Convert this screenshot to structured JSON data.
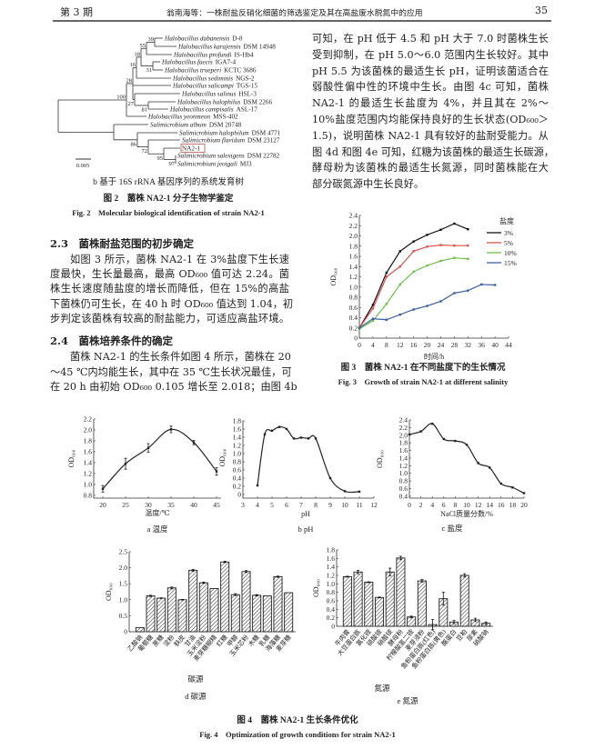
{
  "header": {
    "issue": "第 3 期",
    "running_title": "翁南海等：一株耐盐反硝化细菌的筛选鉴定及其在高盐废水脱氮中的应用",
    "page_number": "35"
  },
  "fig2": {
    "leaves": [
      {
        "taxon": "Halobacillus dabanensis",
        "strain": "D-8"
      },
      {
        "taxon": "Halobacillus karajensis",
        "strain": "DSM 14948"
      },
      {
        "taxon": "Halobacillus profundi",
        "strain": "IS-Hb4"
      },
      {
        "taxon": "Halobacillus faecis",
        "strain": "IGA7-4"
      },
      {
        "taxon": "Halobacillus trueperi",
        "strain": "KCTC 3686"
      },
      {
        "taxon": "Halobacillus sediminis",
        "strain": "NGS-2"
      },
      {
        "taxon": "Halobacillus salicampi",
        "strain": "TGS-15"
      },
      {
        "taxon": "Halobacillus salinus",
        "strain": "HSL-3"
      },
      {
        "taxon": "Halobacillus halophilus",
        "strain": "DSM 2266"
      },
      {
        "taxon": "Halobacillus campisalis",
        "strain": "ASL-17"
      },
      {
        "taxon": "Halobacillus yeonmeon",
        "strain": "MSS-402"
      },
      {
        "taxon": "Salimicrobium album",
        "strain": "DSM 20748"
      },
      {
        "taxon": "Salimicrobium halophilum",
        "strain": "DSM 4771"
      },
      {
        "taxon": "Salimicrobium flavidum",
        "strain": "DSM 23127"
      },
      {
        "taxon": "",
        "strain": "NA2-1"
      },
      {
        "taxon": "Salimicrobium salexigens",
        "strain": "DSM 22782"
      },
      {
        "taxon": "Salimicrobium jeotgali",
        "strain": "MJ3"
      }
    ],
    "bootstrap": [
      "39",
      "82",
      "55",
      "18",
      "31",
      "16",
      "28",
      "100",
      "27",
      "81",
      "86",
      "72",
      "95",
      "97"
    ],
    "scale_bar": "0.005",
    "highlight_color": "#c0504d",
    "subcaption": "b 基于 16S rRNA 基因序列的系统发育树",
    "caption_cn": "图 2　菌株 NA2-1 分子生物学鉴定",
    "caption_en": "Fig. 2　Molecular biological identification of strain NA2-1"
  },
  "right_text": [
    "可知，在 pH 低于 4.5 和 pH 大于 7.0 时菌株生长",
    "受到抑制，在 pH 5.0～6.0 范围内生长较好。其中",
    "pH 5.5 为该菌株的最适生长 pH，证明该菌适合在",
    "弱酸性偏中性的环境中生长。由图 4c 可知，菌株",
    "NA2-1 的最适生长盐度为 4%，并且其在 2%～",
    "10%盐度范围内均能保持良好的生长状态(OD₆₀₀＞",
    "1.5)，说明菌株 NA2-1 具有较好的盐耐受能力。从",
    "图 4d 和图 4e 可知，红糖为该菌株的最适生长碳源，",
    "酵母粉为该菌株的最适生长氮源，同时菌株能在大",
    "部分碳氮源中生长良好。"
  ],
  "section_2_3": {
    "heading": "2.3　菌株耐盐范围的初步确定",
    "lines": [
      "如图 3 所示，菌株 NA2-1 在 3%盐度下生长速",
      "度最快，生长量最高，最高 OD₆₀₀ 值可达 2.24。菌",
      "株生长速度随盐度的增长而降低，但在 15%的高盐",
      "下菌株仍可生长，在 40 h 时 OD₆₀₀ 值达到 1.04，初",
      "步判定该菌株有较高的耐盐能力，可适应高盐环境。"
    ]
  },
  "section_2_4": {
    "heading": "2.4　菌株培养条件的确定",
    "lines": [
      "菌株 NA2-1 的生长条件如图 4 所示，菌株在 20",
      "～45 ℃内均能生长，其中在 35 ℃生长状况最佳，可",
      "在 20 h 由初始 OD₆₀₀ 0.105 增长至 2.018；由图 4b"
    ]
  },
  "chart_data": [
    {
      "id": "fig3",
      "type": "line",
      "x": [
        0,
        4,
        8,
        12,
        16,
        20,
        24,
        28,
        32,
        36,
        40
      ],
      "xlabel": "时间/h",
      "ylabel": "OD₆₀₀",
      "xlim": [
        0,
        44
      ],
      "ylim": [
        0,
        2.4
      ],
      "xticks": [
        0,
        4,
        8,
        12,
        16,
        20,
        24,
        28,
        32,
        36,
        40,
        44
      ],
      "yticks": [
        0,
        0.2,
        0.4,
        0.6,
        0.8,
        1.0,
        1.2,
        1.4,
        1.6,
        1.8,
        2.0,
        2.2,
        2.4
      ],
      "legend_title": "盐度",
      "legend_position": "top-right",
      "series": [
        {
          "name": "3%",
          "color": "#111111",
          "x": [
            0,
            4,
            8,
            12,
            16,
            20,
            24,
            28,
            32
          ],
          "values": [
            0.2,
            0.65,
            1.28,
            1.7,
            1.89,
            2.02,
            2.12,
            2.24,
            2.13
          ]
        },
        {
          "name": "5%",
          "color": "#d9534f",
          "x": [
            0,
            4,
            8,
            12,
            16,
            20,
            24,
            28,
            32
          ],
          "values": [
            0.2,
            0.58,
            1.2,
            1.4,
            1.7,
            1.79,
            1.82,
            1.81,
            1.81
          ]
        },
        {
          "name": "10%",
          "color": "#6cc04a",
          "x": [
            0,
            4,
            8,
            12,
            16,
            20,
            24,
            28,
            32
          ],
          "values": [
            0.18,
            0.34,
            0.67,
            1.05,
            1.3,
            1.42,
            1.51,
            1.57,
            1.55
          ]
        },
        {
          "name": "15%",
          "color": "#3a5fa0",
          "x": [
            0,
            4,
            8,
            12,
            16,
            20,
            24,
            28,
            32,
            36,
            40
          ],
          "values": [
            0.2,
            0.38,
            0.36,
            0.46,
            0.56,
            0.63,
            0.72,
            0.88,
            0.93,
            1.05,
            1.04
          ]
        }
      ],
      "caption_cn": "图 3　菌株 NA2-1 在不同盐度下的生长情况",
      "caption_en": "Fig. 3　Growth of strain NA2-1 at different salinity"
    },
    {
      "id": "fig4a",
      "type": "line",
      "x": [
        20,
        25,
        30,
        35,
        40,
        45
      ],
      "values": [
        0.92,
        1.38,
        1.67,
        2.01,
        1.77,
        1.24
      ],
      "errors": [
        0.06,
        0.1,
        0.08,
        0.06,
        0.04,
        0.07
      ],
      "xlabel": "温度/℃",
      "ylabel": "OD₆₀₀",
      "xlim": [
        18,
        46
      ],
      "ylim": [
        0.75,
        2.2
      ],
      "xticks": [
        20,
        25,
        30,
        35,
        40,
        45
      ],
      "yticks": [
        0.8,
        1.0,
        1.2,
        1.4,
        1.6,
        1.8,
        2.0,
        2.2
      ],
      "subcaption": "a 温度"
    },
    {
      "id": "fig4b",
      "type": "line",
      "x": [
        4,
        4.5,
        5,
        5.5,
        6,
        6.5,
        7,
        7.5,
        8,
        9,
        10,
        11
      ],
      "values": [
        0.22,
        1.47,
        1.56,
        1.65,
        1.6,
        1.37,
        1.39,
        1.37,
        1.37,
        0.4,
        0.08,
        0.07
      ],
      "xlabel": "pH",
      "ylabel": "OD₆₀₀",
      "xlim": [
        3,
        12
      ],
      "ylim": [
        0,
        1.8
      ],
      "xticks": [
        3,
        4,
        5,
        6,
        7,
        8,
        9,
        10,
        11,
        12
      ],
      "yticks": [
        0,
        0.2,
        0.4,
        0.6,
        0.8,
        1.0,
        1.2,
        1.4,
        1.6,
        1.8
      ],
      "subcaption": "b pH"
    },
    {
      "id": "fig4c",
      "type": "line",
      "x": [
        0,
        2,
        4,
        6,
        8,
        10,
        12,
        14,
        16,
        18,
        20
      ],
      "values": [
        2.02,
        2.1,
        2.3,
        1.9,
        1.85,
        1.75,
        1.27,
        1.15,
        0.73,
        0.63,
        0.48
      ],
      "xlabel": "NaCl质量分数/%",
      "ylabel": "OD₆₀₀",
      "xlim": [
        0,
        20
      ],
      "ylim": [
        0.35,
        2.4
      ],
      "xticks": [
        0,
        2,
        4,
        6,
        8,
        10,
        12,
        14,
        16,
        18,
        20
      ],
      "yticks": [
        0.4,
        0.6,
        0.8,
        1.0,
        1.2,
        1.4,
        1.6,
        1.8,
        2.0,
        2.2,
        2.4
      ],
      "subcaption": "c 盐度"
    },
    {
      "id": "fig4d",
      "type": "bar",
      "categories": [
        "乙酸钠",
        "葡萄糖",
        "蔗糖",
        "淀粉",
        "麸皮",
        "甘油",
        "玉米淀粉",
        "麦芽糖糊精",
        "红糖",
        "甲醇",
        "玉米芯粉",
        "木糖",
        "乳糖",
        "海藻糖",
        "麦芽糖"
      ],
      "values": [
        0.13,
        1.12,
        1.05,
        1.37,
        1.0,
        1.92,
        1.53,
        1.35,
        2.18,
        1.16,
        1.88,
        1.14,
        1.12,
        1.72,
        1.22
      ],
      "errors": [
        0,
        0.02,
        0.01,
        0.03,
        0.01,
        0.03,
        0.02,
        0,
        0.02,
        0.03,
        0.03,
        0.02,
        0,
        0.02,
        0
      ],
      "xlabel": "碳源",
      "ylabel": "OD₆₀₀",
      "ylim": [
        0,
        2.5
      ],
      "yticks": [
        0,
        0.5,
        1.0,
        1.5,
        2.0,
        2.5
      ],
      "subcaption": "d 碳源"
    },
    {
      "id": "fig4e",
      "type": "bar",
      "categories": [
        "牛肉膏",
        "大豆蛋白胨",
        "氯化铵",
        "硫酸铵",
        "硝酸铵",
        "酵母粉",
        "柠檬酸氢二铵",
        "麦芽浸粉",
        "鱼粉蛋白胨(红色)",
        "鱼粉蛋白胨(黄色)",
        "酪蛋白",
        "豆粕",
        "尿素",
        "硝酸钠"
      ],
      "values": [
        1.17,
        1.28,
        1.04,
        0.68,
        1.28,
        1.61,
        0.22,
        1.07,
        0.04,
        0.65,
        0.1,
        1.2,
        0.15,
        0.07
      ],
      "errors": [
        0.01,
        0.04,
        0.01,
        0.01,
        0.09,
        0.04,
        0.02,
        0.03,
        0.12,
        0.15,
        0.04,
        0.04,
        0.04,
        0.03
      ],
      "xlabel": "氮源",
      "ylabel": "OD₆₀₀",
      "ylim": [
        0,
        1.8
      ],
      "yticks": [
        0,
        0.2,
        0.4,
        0.6,
        0.8,
        1.0,
        1.2,
        1.4,
        1.6,
        1.8
      ],
      "subcaption": "e 氮源"
    }
  ],
  "fig4": {
    "caption_cn": "图 4　菌株 NA2-1 生长条件优化",
    "caption_en": "Fig. 4　Optimization of growth conditions for strain NA2-1"
  }
}
